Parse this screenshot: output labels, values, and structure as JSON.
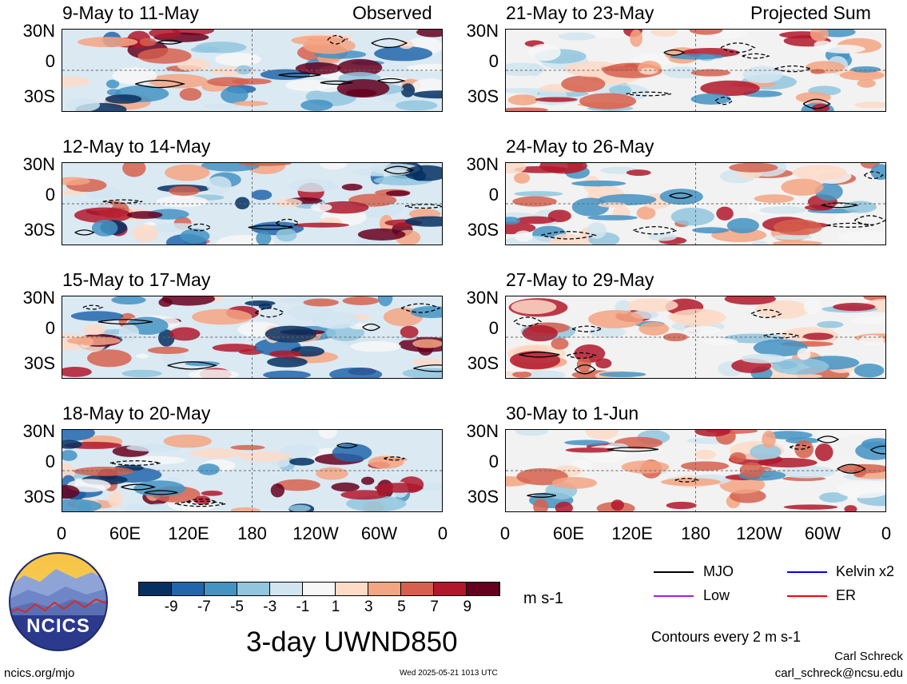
{
  "chart_data": {
    "type": "heatmap",
    "title": "3-day UWND850",
    "units": "m s-1",
    "colorbar": {
      "ticks": [
        "-9",
        "-7",
        "-5",
        "-3",
        "-1",
        "1",
        "3",
        "5",
        "7",
        "9"
      ],
      "colors": [
        "#053061",
        "#2166ac",
        "#4393c3",
        "#92c5de",
        "#d1e5f0",
        "#f7f7f7",
        "#fddbc7",
        "#f4a582",
        "#d6604d",
        "#b2182b",
        "#67001f"
      ]
    },
    "columns": [
      {
        "label": "Observed",
        "panels": [
          "9-May to 11-May",
          "12-May to 14-May",
          "15-May to 17-May",
          "18-May to 20-May"
        ]
      },
      {
        "label": "Projected Sum",
        "panels": [
          "21-May to 23-May",
          "24-May to 26-May",
          "27-May to 29-May",
          "30-May to 1-Jun"
        ]
      }
    ],
    "y_ticks": [
      "30N",
      "0",
      "30S"
    ],
    "x_ticks": [
      "0",
      "60E",
      "120E",
      "180",
      "120W",
      "60W",
      "0"
    ],
    "legend": [
      {
        "label": "MJO",
        "color": "#000000"
      },
      {
        "label": "Kelvin x2",
        "color": "#0000ff"
      },
      {
        "label": "Low",
        "color": "#a020f0"
      },
      {
        "label": "ER",
        "color": "#ff0000"
      }
    ],
    "contour_note": "Contours every 2 m s-1"
  },
  "branding": {
    "logo_text": "NCICS",
    "site": "ncics.org/mjo",
    "timestamp": "Wed 2025-05-21 1013 UTC",
    "author": "Carl Schreck",
    "email": "carl_schreck@ncsu.edu"
  }
}
